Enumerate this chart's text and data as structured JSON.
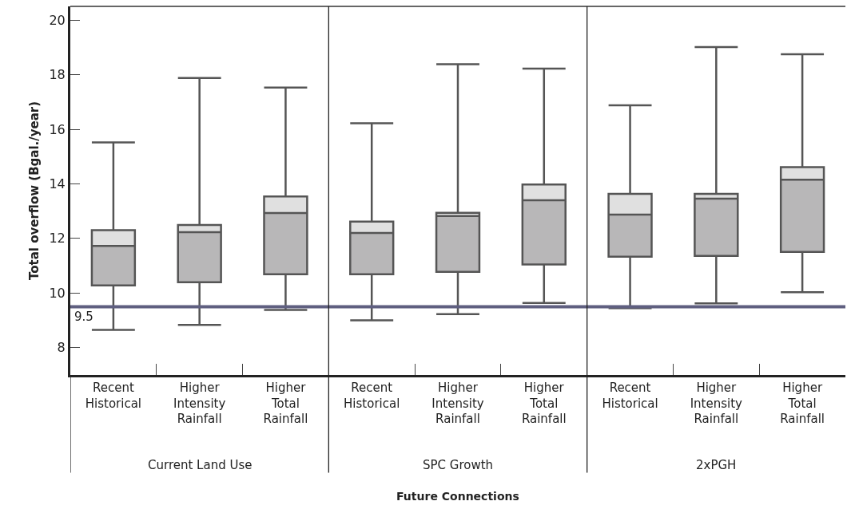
{
  "chart_data": {
    "type": "box",
    "ylabel": "Total overflow (Bgal./year)",
    "categories": [
      "Recent Historical",
      "Higher Intensity Rainfall",
      "Higher Total Rainfall",
      "Recent Historical",
      "Higher Intensity Rainfall",
      "Higher Total Rainfall",
      "Recent Historical",
      "Higher Intensity Rainfall",
      "Higher Total Rainfall"
    ],
    "series": [
      {
        "color": "#b8b7b8",
        "boxes": [
          {
            "low": 8.65,
            "q1": 10.28,
            "median": 11.73,
            "q3": 12.3,
            "high": 15.52
          },
          {
            "low": 8.83,
            "q1": 10.4,
            "median": 12.23,
            "q3": 12.49,
            "high": 17.88
          },
          {
            "low": 9.38,
            "q1": 10.69,
            "median": 12.93,
            "q3": 13.54,
            "high": 17.53
          },
          {
            "low": 9.0,
            "q1": 10.69,
            "median": 12.2,
            "q3": 12.62,
            "high": 16.22
          },
          {
            "low": 9.23,
            "q1": 10.78,
            "median": 12.82,
            "q3": 12.94,
            "high": 18.38
          },
          {
            "low": 9.64,
            "q1": 11.05,
            "median": 13.4,
            "q3": 13.98,
            "high": 18.22
          },
          {
            "low": 9.45,
            "q1": 11.33,
            "median": 12.87,
            "q3": 13.63,
            "high": 16.88
          },
          {
            "low": 9.62,
            "q1": 11.36,
            "median": 13.46,
            "q3": 13.63,
            "high": 19.01
          },
          {
            "low": 10.03,
            "q1": 11.51,
            "median": 14.15,
            "q3": 14.61,
            "high": 18.75
          }
        ]
      }
    ],
    "annotations": [
      "Current Land Use",
      "SPC Growth",
      "2xPGH",
      "Future Connections"
    ],
    "ylim": [
      7,
      20.5
    ],
    "yticks": [
      8,
      10,
      12,
      14,
      16,
      18,
      20
    ],
    "ref_lines": [
      {
        "axis": "y",
        "value": 9.5,
        "label": "9.5",
        "color": "#5f5f80"
      }
    ]
  }
}
